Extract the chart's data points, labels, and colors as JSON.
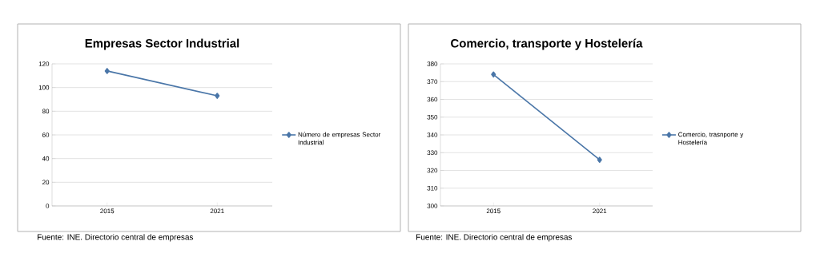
{
  "chart_data": [
    {
      "type": "line",
      "title": "Empresas Sector Industrial",
      "categories": [
        "2015",
        "2021"
      ],
      "series": [
        {
          "name": "Número de empresas Sector Industrial",
          "color": "#4a76a8",
          "values": [
            114,
            93
          ]
        }
      ],
      "ylim": [
        0,
        120
      ],
      "yticks": [
        0,
        20,
        40,
        60,
        80,
        100,
        120
      ],
      "grid": "y",
      "legend": "right",
      "marker": "diamond",
      "annotations": [
        "Fuente: INE. Directorio central de empresas"
      ]
    },
    {
      "type": "line",
      "title": "Comercio, transporte y Hostelería",
      "categories": [
        "2015",
        "2021"
      ],
      "series": [
        {
          "name": "Comercio, trasnporte y Hostelería",
          "color": "#4a76a8",
          "values": [
            374,
            326
          ]
        }
      ],
      "ylim": [
        300,
        380
      ],
      "yticks": [
        300,
        310,
        320,
        330,
        340,
        350,
        360,
        370,
        380
      ],
      "grid": "y",
      "legend": "right",
      "marker": "diamond",
      "annotations": [
        "Fuente: INE. Directorio central de empresas"
      ]
    }
  ]
}
